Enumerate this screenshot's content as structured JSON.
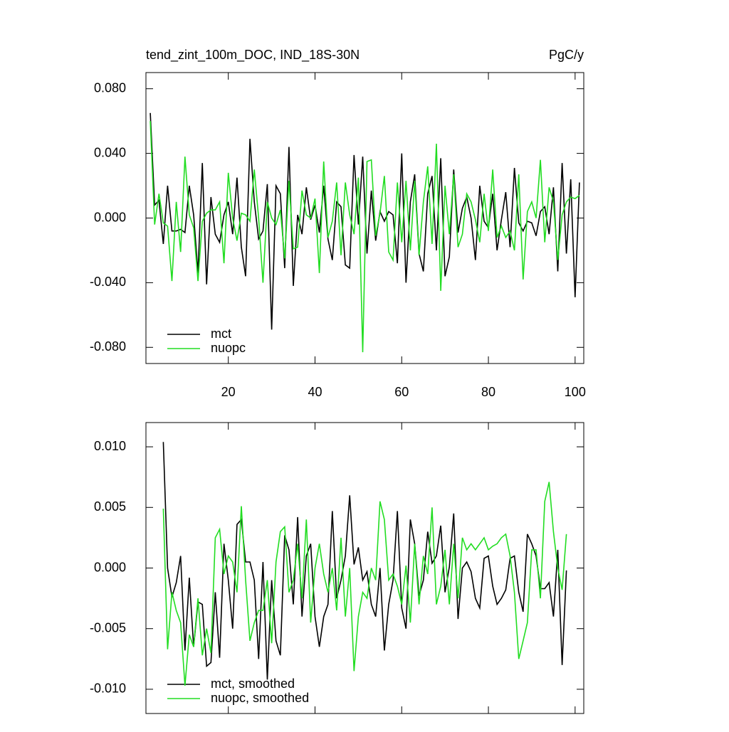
{
  "chart_data": [
    {
      "type": "line",
      "title": "tend_zint_100m_DOC, IND_18S-30N",
      "units": "PgC/y",
      "xlim": [
        1,
        102
      ],
      "xticks": [
        20,
        40,
        60,
        80,
        100
      ],
      "xtick_labels": true,
      "ylim": [
        -0.09,
        0.09
      ],
      "yticks": [
        {
          "value": -0.08,
          "label": "-0.080"
        },
        {
          "value": -0.04,
          "label": "-0.040"
        },
        {
          "value": 0,
          "label": "0.000"
        },
        {
          "value": 0.04,
          "label": "0.040"
        },
        {
          "value": 0.08,
          "label": "0.080"
        }
      ],
      "x": [
        2,
        3,
        4,
        5,
        6,
        7,
        8,
        9,
        10,
        11,
        12,
        13,
        14,
        15,
        16,
        17,
        18,
        19,
        20,
        21,
        22,
        23,
        24,
        25,
        26,
        27,
        28,
        29,
        30,
        31,
        32,
        33,
        34,
        35,
        36,
        37,
        38,
        39,
        40,
        41,
        42,
        43,
        44,
        45,
        46,
        47,
        48,
        49,
        50,
        51,
        52,
        53,
        54,
        55,
        56,
        57,
        58,
        59,
        60,
        61,
        62,
        63,
        64,
        65,
        66,
        67,
        68,
        69,
        70,
        71,
        72,
        73,
        74,
        75,
        76,
        77,
        78,
        79,
        80,
        81,
        82,
        83,
        84,
        85,
        86,
        87,
        88,
        89,
        90,
        91,
        92,
        93,
        94,
        95,
        96,
        97,
        98,
        99,
        100,
        101
      ],
      "series": [
        {
          "name": "mct",
          "color": "#000000",
          "values": [
            0.065,
            0.008,
            0.011,
            -0.016,
            0.02,
            -0.008,
            -0.008,
            -0.007,
            -0.009,
            0.02,
            0.002,
            -0.034,
            0.034,
            -0.041,
            0.013,
            -0.01,
            -0.015,
            0.002,
            0.01,
            -0.01,
            0.025,
            -0.018,
            -0.036,
            0.049,
            0.01,
            -0.013,
            -0.008,
            0.021,
            -0.069,
            0.02,
            0.015,
            -0.031,
            0.044,
            -0.042,
            0.002,
            -0.01,
            0.019,
            -0.001,
            0.008,
            -0.009,
            0.02,
            -0.013,
            -0.026,
            0.01,
            0.007,
            -0.029,
            -0.031,
            0.039,
            -0.004,
            0.038,
            -0.022,
            0.017,
            -0.014,
            0.004,
            -0.002,
            0.004,
            0.002,
            -0.028,
            0.04,
            -0.04,
            0.01,
            0.027,
            -0.022,
            -0.033,
            0.015,
            0.026,
            -0.02,
            0.037,
            -0.036,
            -0.024,
            0.03,
            -0.009,
            0.006,
            0.013,
            0.0,
            -0.026,
            0.02,
            -0.002,
            -0.006,
            0.015,
            -0.02,
            -0.001,
            0.016,
            -0.018,
            0.031,
            -0.003,
            -0.008,
            -0.002,
            -0.003,
            -0.011,
            0.004,
            0.007,
            -0.01,
            0.019,
            -0.033,
            0.034,
            -0.022,
            0.024,
            -0.049,
            0.022
          ]
        },
        {
          "name": "nuopc",
          "color": "#22dd22",
          "values": [
            0.06,
            -0.004,
            0.015,
            -0.003,
            -0.005,
            -0.039,
            0.01,
            -0.021,
            0.038,
            0.002,
            -0.006,
            -0.039,
            -0.002,
            0.003,
            0.005,
            0.005,
            0.01,
            -0.028,
            0.028,
            0.0,
            -0.014,
            0.003,
            0.002,
            -0.002,
            0.03,
            0.0,
            -0.04,
            0.01,
            0.0,
            -0.004,
            0.005,
            -0.025,
            0.023,
            -0.019,
            -0.018,
            0.017,
            0.002,
            0.0,
            0.012,
            -0.034,
            0.035,
            -0.012,
            -0.002,
            0.022,
            -0.023,
            0.022,
            0.002,
            -0.01,
            0.025,
            -0.083,
            0.035,
            0.036,
            -0.011,
            0.003,
            0.026,
            -0.021,
            -0.026,
            0.022,
            -0.015,
            0.023,
            -0.02,
            0.023,
            -0.023,
            0.01,
            0.032,
            -0.016,
            0.046,
            -0.045,
            0.02,
            -0.01,
            0.027,
            -0.018,
            -0.01,
            0.015,
            0.01,
            -0.001,
            -0.015,
            0.015,
            -0.008,
            0.03,
            -0.012,
            -0.005,
            -0.012,
            -0.008,
            -0.02,
            0.027,
            -0.038,
            0.004,
            0.01,
            0.0,
            0.036,
            -0.015,
            0.019,
            0.01,
            -0.026,
            0.002,
            0.01,
            0.013,
            0.012,
            0.014
          ]
        }
      ]
    },
    {
      "type": "line",
      "xlim": [
        1,
        102
      ],
      "xticks": [
        20,
        40,
        60,
        80,
        100
      ],
      "xtick_labels": false,
      "ylim": [
        -0.012,
        0.012
      ],
      "yticks": [
        {
          "value": -0.01,
          "label": "-0.010"
        },
        {
          "value": -0.005,
          "label": "-0.005"
        },
        {
          "value": 0,
          "label": "0.000"
        },
        {
          "value": 0.005,
          "label": "0.005"
        },
        {
          "value": 0.01,
          "label": "0.010"
        }
      ],
      "x": [
        5,
        6,
        7,
        8,
        9,
        10,
        11,
        12,
        13,
        14,
        15,
        16,
        17,
        18,
        19,
        20,
        21,
        22,
        23,
        24,
        25,
        26,
        27,
        28,
        29,
        30,
        31,
        32,
        33,
        34,
        35,
        36,
        37,
        38,
        39,
        40,
        41,
        42,
        43,
        44,
        45,
        46,
        47,
        48,
        49,
        50,
        51,
        52,
        53,
        54,
        55,
        56,
        57,
        58,
        59,
        60,
        61,
        62,
        63,
        64,
        65,
        66,
        67,
        68,
        69,
        70,
        71,
        72,
        73,
        74,
        75,
        76,
        77,
        78,
        79,
        80,
        81,
        82,
        83,
        84,
        85,
        86,
        87,
        88,
        89,
        90,
        91,
        92,
        93,
        94,
        95,
        96,
        97,
        98
      ],
      "series": [
        {
          "name": "mct, smoothed",
          "color": "#000000",
          "values": [
            0.0104,
            0.0,
            -0.0024,
            -0.0012,
            0.001,
            -0.0068,
            -0.0008,
            -0.0065,
            -0.0028,
            -0.003,
            -0.0081,
            -0.0078,
            -0.002,
            -0.0074,
            0.002,
            -0.001,
            -0.005,
            0.0036,
            0.004,
            0.0005,
            0.0005,
            -0.001,
            -0.0075,
            0.0005,
            -0.0092,
            -0.001,
            -0.006,
            -0.0072,
            0.0027,
            0.0015,
            -0.003,
            0.0042,
            -0.004,
            0.001,
            0.002,
            -0.004,
            -0.0065,
            -0.004,
            -0.003,
            0.0047,
            -0.0025,
            -0.001,
            0.001,
            0.006,
            0.0003,
            0.0017,
            -0.001,
            -0.0003,
            -0.003,
            -0.004,
            0.0,
            -0.0068,
            -0.003,
            -0.001,
            0.0047,
            -0.0033,
            -0.005,
            0.004,
            0.002,
            -0.0023,
            -0.001,
            0.003,
            0.0004,
            0.001,
            0.0035,
            -0.002,
            0.0001,
            0.0045,
            -0.0042,
            0.0,
            0.0005,
            -0.0003,
            -0.0025,
            -0.0033,
            0.0008,
            0.001,
            -0.0015,
            -0.003,
            -0.0025,
            -0.0018,
            0.0008,
            0.001,
            -0.002,
            -0.0036,
            0.0028,
            0.002,
            0.001,
            -0.0017,
            -0.0017,
            -0.0012,
            -0.004,
            0.0015,
            -0.008,
            -0.0002
          ]
        },
        {
          "name": "nuopc, smoothed",
          "color": "#22dd22",
          "values": [
            0.0049,
            -0.0067,
            -0.002,
            -0.0035,
            -0.0045,
            -0.0097,
            -0.0055,
            -0.0065,
            -0.0025,
            -0.0072,
            -0.005,
            -0.007,
            0.0025,
            0.0032,
            -0.0005,
            0.001,
            0.0005,
            -0.002,
            0.0051,
            -0.001,
            -0.006,
            -0.0045,
            -0.0035,
            -0.0035,
            -0.001,
            -0.0062,
            0.0005,
            0.003,
            0.0034,
            -0.002,
            -0.001,
            0.002,
            -0.0025,
            0.004,
            -0.0045,
            0.0,
            0.002,
            -0.0005,
            -0.002,
            0.0,
            -0.0035,
            0.0025,
            -0.004,
            0.0,
            -0.0085,
            -0.004,
            -0.002,
            -0.0025,
            0.0,
            -0.001,
            0.0055,
            0.004,
            -0.001,
            -0.0005,
            -0.0015,
            -0.003,
            0.0002,
            -0.0045,
            0.002,
            -0.003,
            0.001,
            -0.0005,
            0.005,
            -0.003,
            -0.0015,
            0.0015,
            -0.003,
            0.002,
            -0.0025,
            0.0025,
            0.0015,
            0.002,
            0.0015,
            0.002,
            0.0025,
            0.0015,
            0.0018,
            0.002,
            0.0025,
            0.0028,
            0.001,
            -0.002,
            -0.0075,
            -0.006,
            -0.0045,
            0.0015,
            0.0015,
            -0.0025,
            0.0055,
            0.0071,
            0.003,
            0.0,
            -0.0018,
            0.0028
          ]
        }
      ]
    }
  ]
}
